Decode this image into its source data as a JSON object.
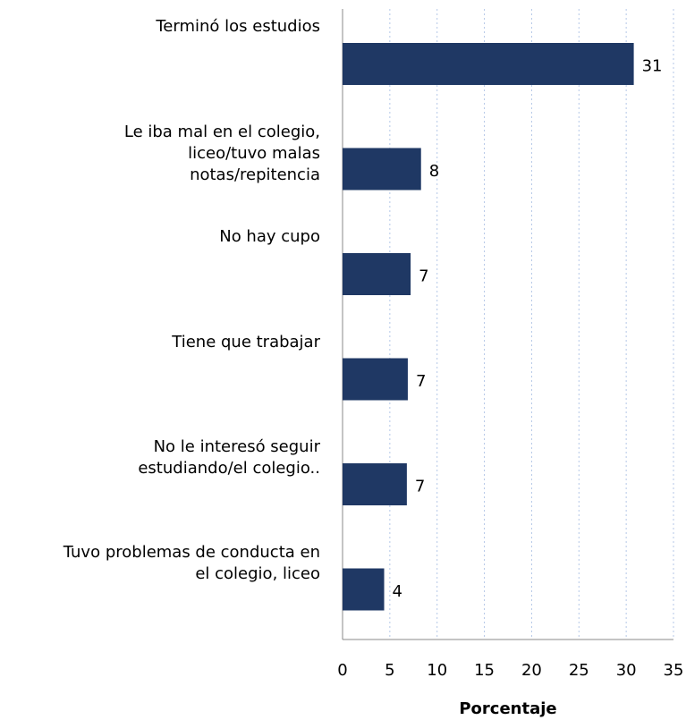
{
  "chart_data": {
    "type": "barh",
    "categories": [
      "Terminó los estudios",
      "Le iba mal en el colegio,\nliceo/tuvo malas\nnotas/repitencia",
      "No hay cupo",
      "Tiene que trabajar",
      "No le interesó seguir\nestudiando/el colegio..",
      "Tuvo problemas de conducta en\nel colegio, liceo"
    ],
    "values": [
      30.8,
      8.3,
      7.2,
      6.9,
      6.8,
      4.4
    ],
    "value_labels": [
      "31",
      "8",
      "7",
      "7",
      "7",
      "4"
    ],
    "color": "#1f3864",
    "xlim": [
      0,
      35
    ],
    "xticks": [
      0,
      5,
      10,
      15,
      20,
      25,
      30,
      35
    ],
    "xlabel": "Porcentaje",
    "grid": true
  }
}
